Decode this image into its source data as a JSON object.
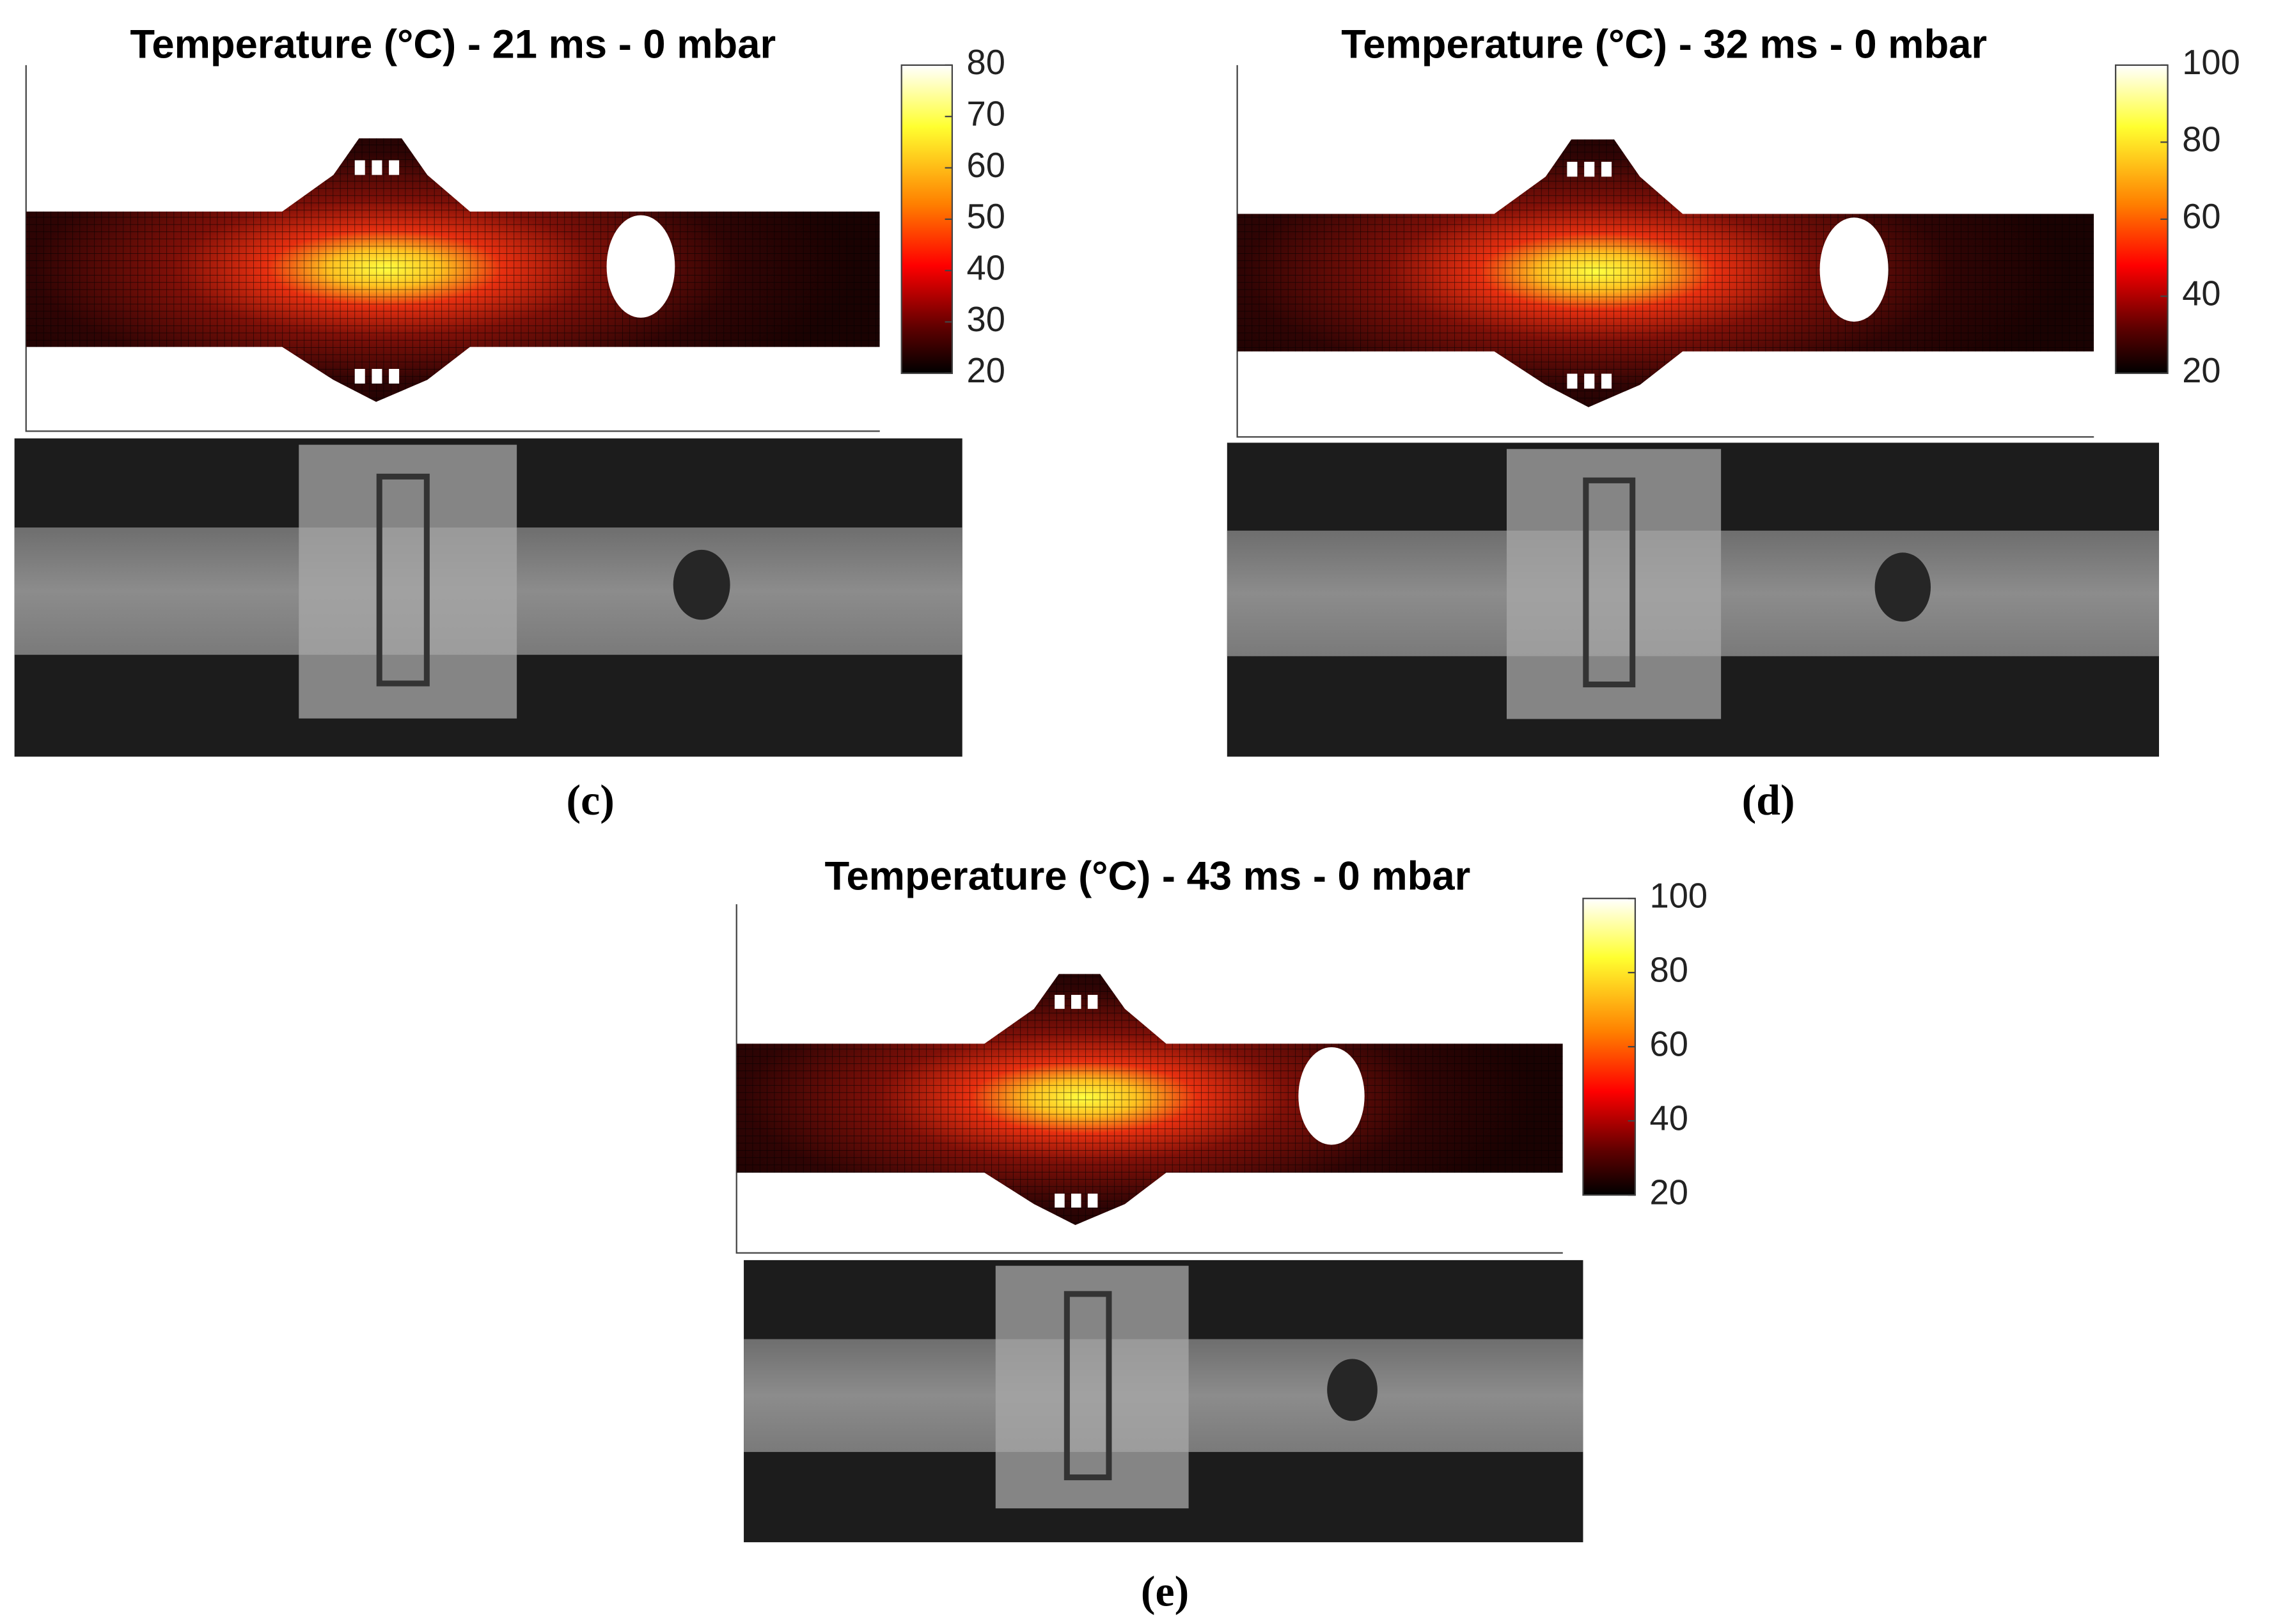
{
  "chart_data": [
    {
      "type": "heatmap",
      "title": "Temperature (°C) - 21 ms - 0 mbar",
      "colormap": "hot",
      "clim": [
        20,
        80
      ],
      "cticks": [
        20,
        30,
        40,
        50,
        60,
        70,
        80
      ],
      "caption": "(c)"
    },
    {
      "type": "heatmap",
      "title": "Temperature (°C) - 32 ms - 0 mbar",
      "colormap": "hot",
      "clim": [
        20,
        100
      ],
      "cticks": [
        20,
        40,
        60,
        80,
        100
      ],
      "caption": "(d)"
    },
    {
      "type": "heatmap",
      "title": "Temperature (°C) - 43 ms - 0 mbar",
      "colormap": "hot",
      "clim": [
        20,
        100
      ],
      "cticks": [
        20,
        40,
        60,
        80,
        100
      ],
      "caption": "(e)"
    }
  ]
}
